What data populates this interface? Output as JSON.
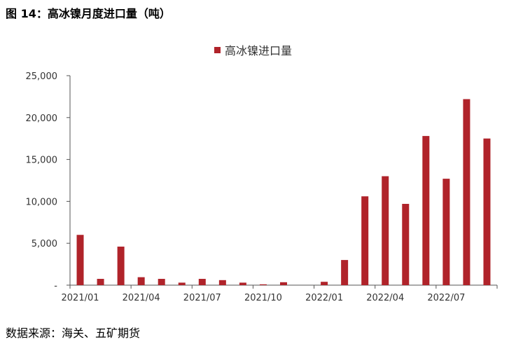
{
  "figure": {
    "title": "图 14：高冰镍月度进口量（吨）",
    "source": "数据来源：海关、五矿期货"
  },
  "chart_data": {
    "type": "bar",
    "title": "",
    "xlabel": "",
    "ylabel": "",
    "ylim": [
      0,
      25000
    ],
    "yticks": [
      0,
      5000,
      10000,
      15000,
      20000,
      25000
    ],
    "ytick_labels": [
      "-",
      "5,000",
      "10,000",
      "15,000",
      "20,000",
      "25,000"
    ],
    "categories": [
      "2021/01",
      "2021/02",
      "2021/03",
      "2021/04",
      "2021/05",
      "2021/06",
      "2021/07",
      "2021/08",
      "2021/09",
      "2021/10",
      "2021/11",
      "2021/12",
      "2022/01",
      "2022/02",
      "2022/03",
      "2022/04",
      "2022/05",
      "2022/06",
      "2022/07",
      "2022/08",
      "2022/09"
    ],
    "xtick_labels": [
      "2021/01",
      "2021/04",
      "2021/07",
      "2021/10",
      "2022/01",
      "2022/04",
      "2022/07"
    ],
    "xtick_index": [
      0,
      3,
      6,
      9,
      12,
      15,
      18
    ],
    "series": [
      {
        "name": "高冰镍进口量",
        "color": "#B0232A",
        "values": [
          6000,
          750,
          4600,
          950,
          750,
          300,
          750,
          600,
          300,
          100,
          350,
          0,
          400,
          3000,
          10600,
          13000,
          9700,
          17800,
          12700,
          22200,
          17500
        ]
      }
    ],
    "legend_position": "top-center",
    "grid": false
  }
}
